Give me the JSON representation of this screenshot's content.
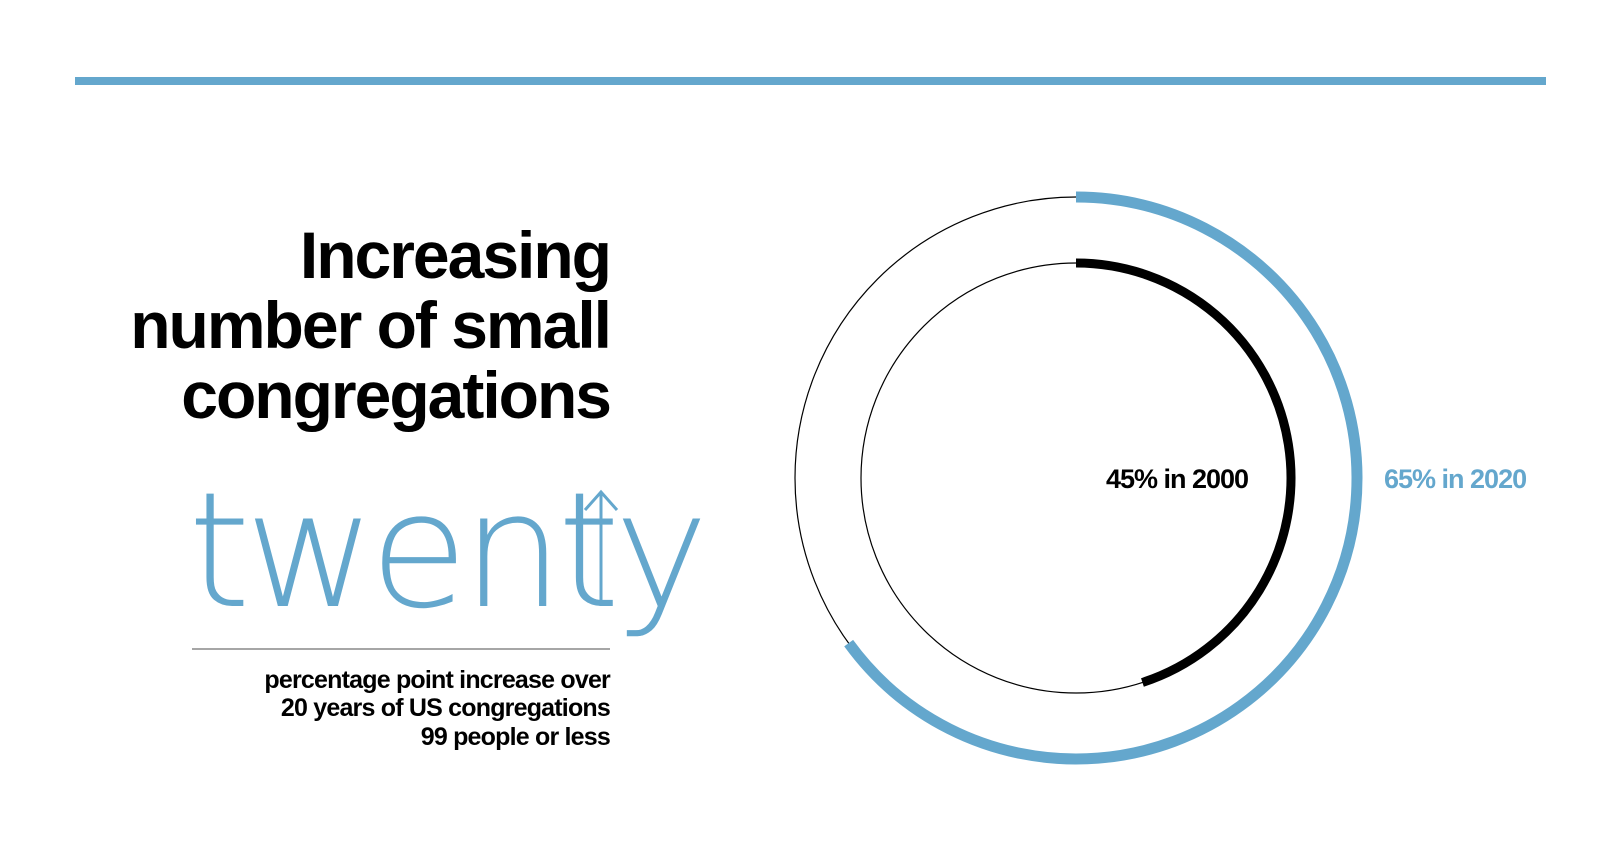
{
  "colors": {
    "accent": "#64a7cd",
    "dark": "#000000",
    "rule": "#888888"
  },
  "title_lines": [
    "Increasing",
    "number of small",
    "congregations"
  ],
  "stat": {
    "word": "twenty",
    "icon": "arrow-up-icon"
  },
  "description_lines": [
    "percentage point increase over",
    "20 years of US congregations",
    "99 people or less"
  ],
  "chart_data": {
    "type": "donut",
    "title": "Increasing number of small congregations",
    "series": [
      {
        "name": "2000",
        "value": 45,
        "label": "45% in 2000",
        "color": "#000000",
        "ring": "inner"
      },
      {
        "name": "2020",
        "value": 65,
        "label": "65% in 2020",
        "color": "#64a7cd",
        "ring": "outer"
      }
    ],
    "max": 100
  }
}
